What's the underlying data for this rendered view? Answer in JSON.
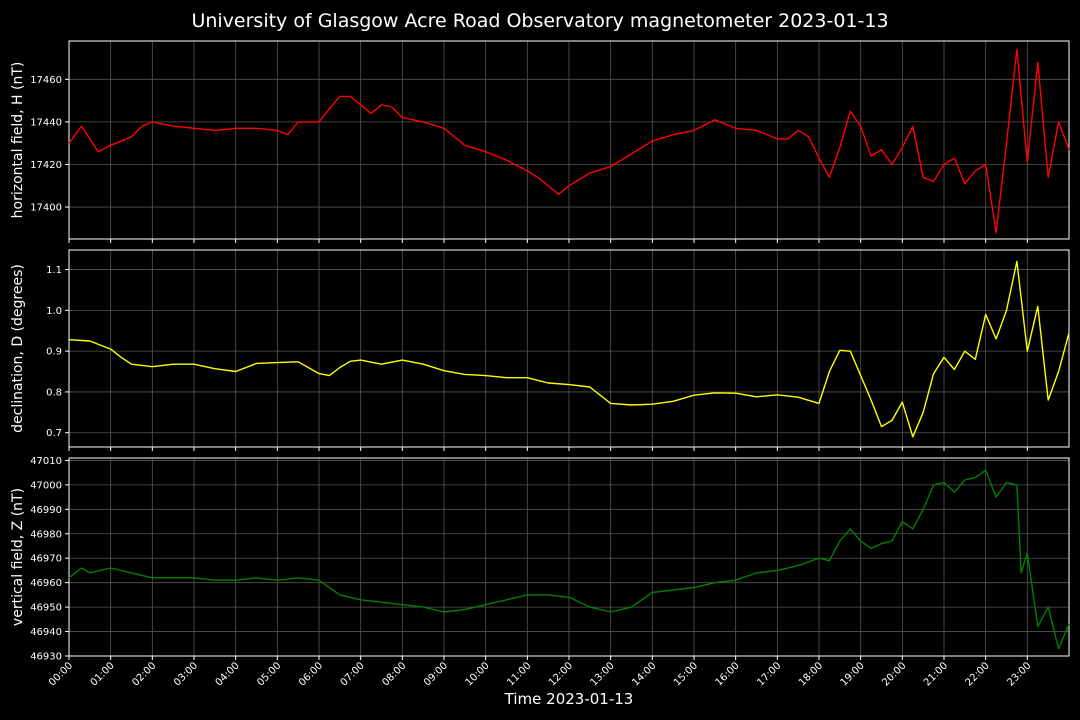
{
  "title": "University of Glasgow Acre Road Observatory magnetometer 2023-01-13",
  "xlabel": "Time 2023-01-13",
  "colors": {
    "background": "#000000",
    "axes": "#ffffff",
    "grid": "#555555"
  },
  "chart_data": [
    {
      "type": "line",
      "ylabel": "horizontal field, H (nT)",
      "color": "#ff0000",
      "ylim": [
        17385,
        17478
      ],
      "yticks": [
        17400,
        17420,
        17440,
        17460
      ],
      "xlim": [
        0,
        24
      ],
      "x": [
        0,
        0.3,
        0.5,
        0.7,
        1,
        1.5,
        1.75,
        2,
        2.5,
        3,
        3.5,
        4,
        4.5,
        5,
        5.25,
        5.5,
        6,
        6.2,
        6.5,
        6.75,
        7,
        7.25,
        7.5,
        7.75,
        8,
        8.5,
        9,
        9.5,
        10,
        10.5,
        11,
        11.25,
        11.5,
        11.75,
        12,
        12.5,
        13,
        13.5,
        14,
        14.5,
        15,
        15.5,
        16,
        16.5,
        17,
        17.25,
        17.5,
        17.75,
        18,
        18.25,
        18.5,
        18.75,
        19,
        19.25,
        19.5,
        19.75,
        20,
        20.25,
        20.5,
        20.75,
        21,
        21.25,
        21.5,
        21.75,
        22,
        22.25,
        22.5,
        22.75,
        23,
        23.25,
        23.5,
        23.75,
        24
      ],
      "values": [
        17430,
        17438,
        17432,
        17426,
        17429,
        17433,
        17438,
        17440,
        17438,
        17437,
        17436,
        17437,
        17437,
        17436,
        17434,
        17440,
        17440,
        17445,
        17452,
        17452,
        17448,
        17444,
        17448,
        17447,
        17442,
        17440,
        17437,
        17429,
        17426,
        17422,
        17417,
        17414,
        17410,
        17406,
        17410,
        17416,
        17419,
        17425,
        17431,
        17434,
        17436,
        17441,
        17437,
        17436,
        17432,
        17432,
        17436,
        17433,
        17423,
        17414,
        17428,
        17445,
        17438,
        17424,
        17427,
        17420,
        17428,
        17438,
        17414,
        17412,
        17420,
        17423,
        17411,
        17417,
        17420,
        17388,
        17430,
        17474,
        17421,
        17468,
        17414,
        17440,
        17427
      ]
    },
    {
      "type": "line",
      "ylabel": "declination, D (degrees)",
      "color": "#ffff00",
      "ylim": [
        0.665,
        1.148
      ],
      "yticks": [
        0.7,
        0.8,
        0.9,
        1.0,
        1.1
      ],
      "xlim": [
        0,
        24
      ],
      "x": [
        0,
        0.5,
        1,
        1.25,
        1.5,
        2,
        2.5,
        3,
        3.5,
        4,
        4.5,
        5,
        5.5,
        6,
        6.25,
        6.5,
        6.75,
        7,
        7.5,
        8,
        8.5,
        9,
        9.5,
        10,
        10.5,
        11,
        11.5,
        12,
        12.5,
        13,
        13.5,
        14,
        14.5,
        15,
        15.5,
        16,
        16.5,
        17,
        17.5,
        18,
        18.25,
        18.5,
        18.75,
        19,
        19.25,
        19.5,
        19.75,
        20,
        20.25,
        20.5,
        20.75,
        21,
        21.25,
        21.5,
        21.75,
        22,
        22.25,
        22.5,
        22.75,
        23,
        23.25,
        23.5,
        23.75,
        24
      ],
      "values": [
        0.928,
        0.925,
        0.905,
        0.885,
        0.868,
        0.862,
        0.868,
        0.868,
        0.857,
        0.85,
        0.87,
        0.872,
        0.874,
        0.845,
        0.84,
        0.86,
        0.875,
        0.878,
        0.868,
        0.878,
        0.868,
        0.852,
        0.843,
        0.84,
        0.835,
        0.835,
        0.822,
        0.818,
        0.812,
        0.772,
        0.768,
        0.77,
        0.777,
        0.792,
        0.798,
        0.797,
        0.788,
        0.793,
        0.787,
        0.772,
        0.85,
        0.902,
        0.9,
        0.84,
        0.78,
        0.715,
        0.73,
        0.775,
        0.69,
        0.75,
        0.845,
        0.885,
        0.855,
        0.9,
        0.88,
        0.99,
        0.93,
        1.0,
        1.12,
        0.9,
        1.01,
        0.78,
        0.85,
        0.945
      ]
    },
    {
      "type": "line",
      "ylabel": "vertical field, Z (nT)",
      "color": "#008000",
      "ylim": [
        46930,
        47011
      ],
      "yticks": [
        46930,
        46940,
        46950,
        46960,
        46970,
        46980,
        46990,
        47000,
        47010
      ],
      "xlim": [
        0,
        24
      ],
      "x": [
        0,
        0.3,
        0.5,
        1,
        1.5,
        2,
        2.5,
        3,
        3.5,
        4,
        4.5,
        5,
        5.5,
        6,
        6.25,
        6.5,
        7,
        7.5,
        8,
        8.5,
        9,
        9.5,
        10,
        10.5,
        11,
        11.5,
        12,
        12.5,
        13,
        13.5,
        14,
        14.5,
        15,
        15.5,
        16,
        16.5,
        17,
        17.5,
        18,
        18.25,
        18.5,
        18.75,
        19,
        19.25,
        19.5,
        19.75,
        20,
        20.25,
        20.5,
        20.75,
        21,
        21.25,
        21.5,
        21.75,
        22,
        22.25,
        22.5,
        22.75,
        22.85,
        23,
        23.25,
        23.5,
        23.75,
        24
      ],
      "values": [
        46962,
        46966,
        46964,
        46966,
        46964,
        46962,
        46962,
        46962,
        46961,
        46961,
        46962,
        46961,
        46962,
        46961,
        46958,
        46955,
        46953,
        46952,
        46951,
        46950,
        46948,
        46949,
        46951,
        46953,
        46955,
        46955,
        46954,
        46950,
        46948,
        46950,
        46956,
        46957,
        46958,
        46960,
        46961,
        46964,
        46965,
        46967,
        46970,
        46969,
        46977,
        46982,
        46977,
        46974,
        46976,
        46977,
        46985,
        46982,
        46990,
        47000,
        47001,
        46997,
        47002,
        47003,
        47006,
        46995,
        47001,
        47000,
        46964,
        46972,
        46942,
        46950,
        46933,
        46943
      ]
    }
  ],
  "xticks": [
    "00:00",
    "01:00",
    "02:00",
    "03:00",
    "04:00",
    "05:00",
    "06:00",
    "07:00",
    "08:00",
    "09:00",
    "10:00",
    "11:00",
    "12:00",
    "13:00",
    "14:00",
    "15:00",
    "16:00",
    "17:00",
    "18:00",
    "19:00",
    "20:00",
    "21:00",
    "22:00",
    "23:00"
  ]
}
